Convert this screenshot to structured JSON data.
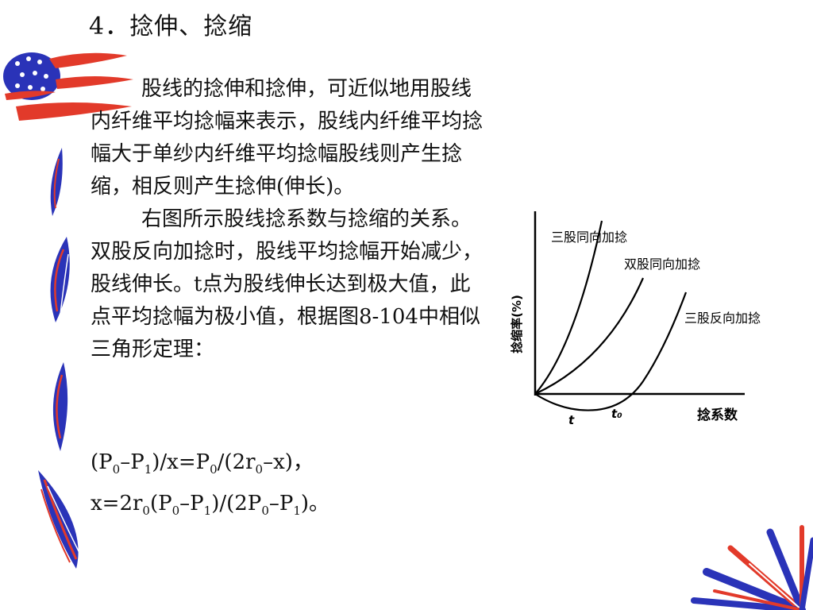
{
  "slide": {
    "title": "4．捻伸、捻缩",
    "paragraph1": "股线的捻伸和捻伸，可近似地用股线内纤维平均捻幅来表示，股线内纤维平均捻幅大于单纱内纤维平均捻幅股线则产生捻缩，相反则产生捻伸(伸长)。",
    "paragraph2": "右图所示股线捻系数与捻缩的关系。双股反向加捻时，股线平均捻幅开始减少，股线伸长。t点为股线伸长达到极大值，此点平均捻幅为极小值，根据图8-104中相似三角形定理：",
    "formula1": {
      "p": "P",
      "s0": "0",
      "s1": "1",
      "open": "(",
      "minus": "–",
      "close": ")",
      "slash_x_eq": "/x=",
      "slash_open_2r": "/(2r",
      "minus_x_close": "–x)，"
    },
    "formula2": {
      "x_eq_2r": "x=2r",
      "zero": "0",
      "one": "1",
      "open": "(",
      "p": "P",
      "minus": "–",
      "close_slash_open_2p": ")/(2P",
      "close_end": ")。"
    }
  },
  "chart_data": {
    "type": "line",
    "title": "",
    "xlabel": "捻系数",
    "ylabel": "捻缩率(%)",
    "x_ticks": [
      "t",
      "t₀"
    ],
    "series": [
      {
        "name": "三股同向加捻",
        "shape": "increasing, steepest"
      },
      {
        "name": "双股同向加捻",
        "shape": "increasing"
      },
      {
        "name": "三股反向加捻",
        "shape": "dips below zero to minimum at t, crosses zero at t₀, then rises"
      }
    ]
  },
  "colors": {
    "flag_red": "#e23a2a",
    "flag_blue": "#2a33b8",
    "text": "#111111"
  }
}
